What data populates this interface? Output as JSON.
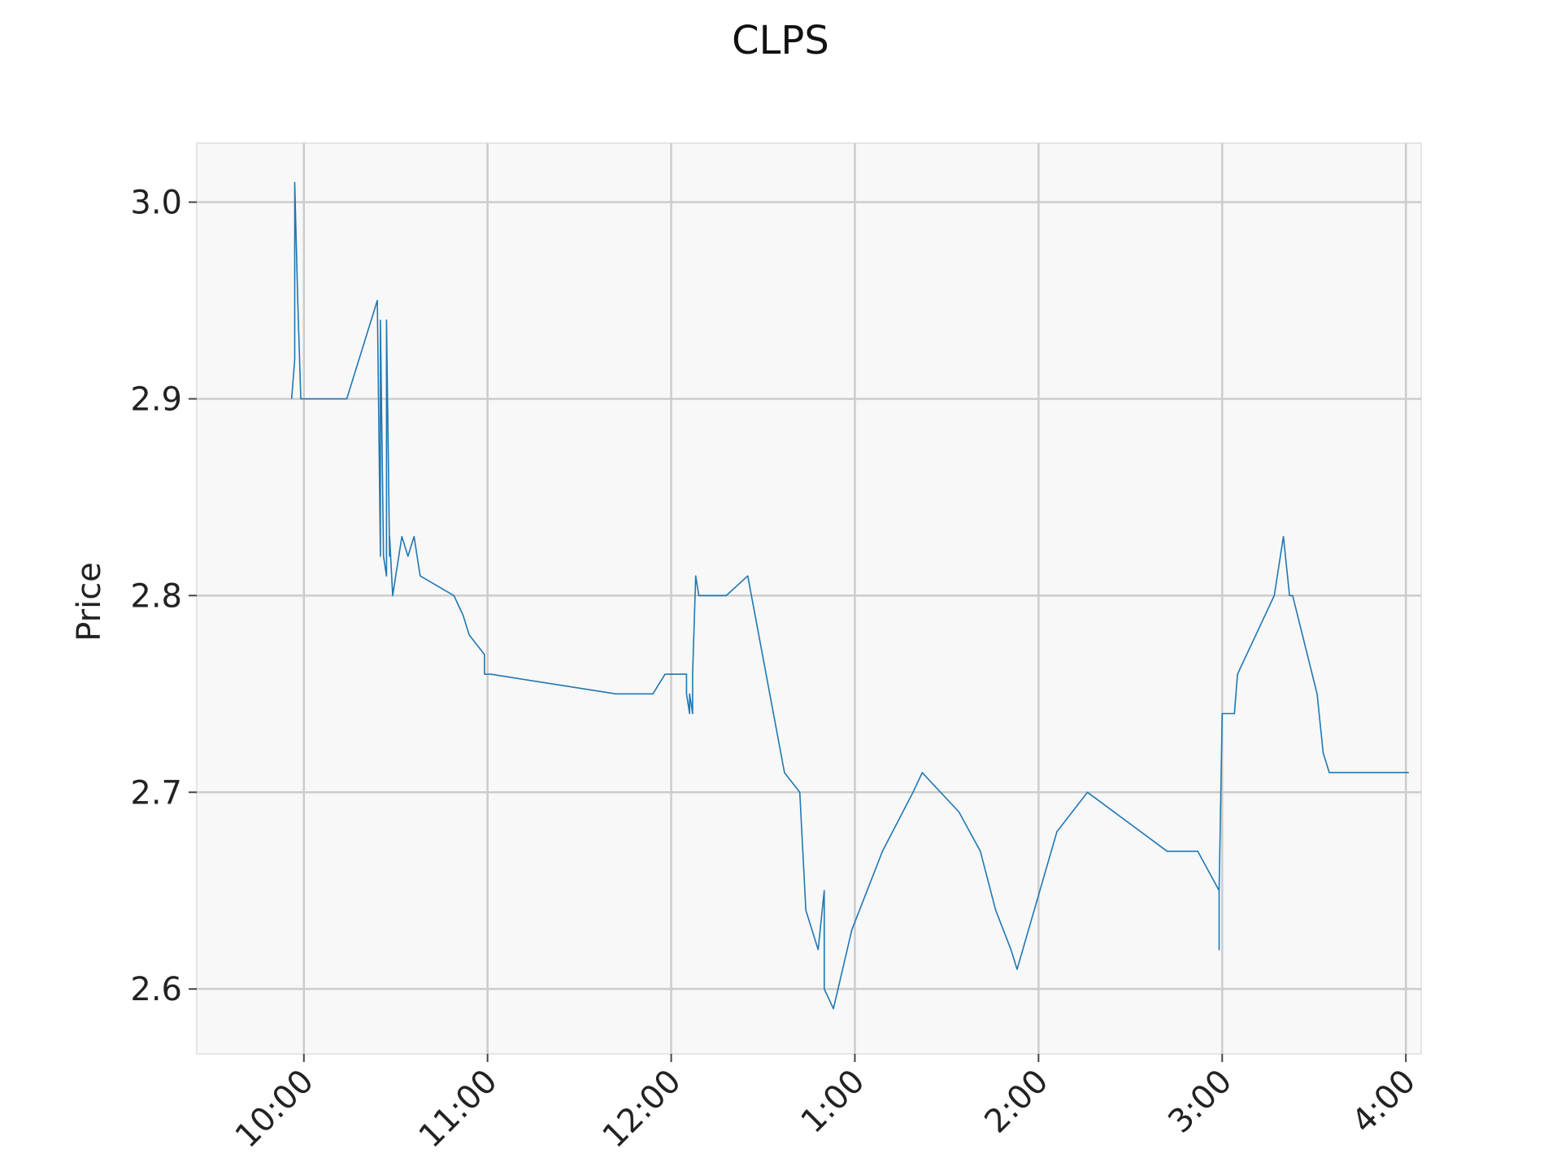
{
  "chart_data": {
    "type": "line",
    "title": "CLPS",
    "xlabel": "",
    "ylabel": "Price",
    "x_axis_type": "time",
    "xlim": [
      "9:25",
      "16:05"
    ],
    "ylim": [
      2.567,
      3.03
    ],
    "xticks": [
      {
        "time": "10:00",
        "label": "10:00"
      },
      {
        "time": "11:00",
        "label": "11:00"
      },
      {
        "time": "12:00",
        "label": "12:00"
      },
      {
        "time": "13:00",
        "label": "1:00"
      },
      {
        "time": "14:00",
        "label": "2:00"
      },
      {
        "time": "15:00",
        "label": "3:00"
      },
      {
        "time": "16:00",
        "label": "4:00"
      }
    ],
    "yticks": [
      {
        "value": 2.6,
        "label": "2.6"
      },
      {
        "value": 2.7,
        "label": "2.7"
      },
      {
        "value": 2.8,
        "label": "2.8"
      },
      {
        "value": 2.9,
        "label": "2.9"
      },
      {
        "value": 3.0,
        "label": "3.0"
      }
    ],
    "grid": true,
    "legend": false,
    "colors": {
      "line": "#1f77b4",
      "plot_bg": "#f8f8f8",
      "grid": "#cccccc",
      "frame": "#e6e6e6"
    },
    "series": [
      {
        "x": [
          "9:56",
          "9:57",
          "9:57",
          "9:58",
          "9:59",
          "10:04",
          "10:14",
          "10:24",
          "10:25",
          "10:25",
          "10:25",
          "10:26",
          "10:27",
          "10:27",
          "10:28",
          "10:28",
          "10:29",
          "10:30",
          "10:31",
          "10:32",
          "10:34",
          "10:36",
          "10:38",
          "10:49",
          "10:52",
          "10:54",
          "10:59",
          "10:59",
          "11:00",
          "11:01",
          "11:42",
          "11:43",
          "11:54",
          "11:58",
          "12:05",
          "12:05",
          "12:06",
          "12:06",
          "12:07",
          "12:07",
          "12:08",
          "12:09",
          "12:11",
          "12:11",
          "12:13",
          "12:18",
          "12:25",
          "12:37",
          "12:42",
          "12:44",
          "12:48",
          "12:50",
          "12:50",
          "12:50",
          "12:53",
          "12:59",
          "13:09",
          "13:19",
          "13:22",
          "13:34",
          "13:41",
          "13:46",
          "13:51",
          "13:53",
          "14:06",
          "14:16",
          "14:42",
          "14:52",
          "14:59",
          "14:59",
          "14:59",
          "15:00",
          "15:00",
          "15:01",
          "15:03",
          "15:04",
          "15:05",
          "15:17",
          "15:20",
          "15:22",
          "15:23",
          "15:31",
          "15:33",
          "15:35",
          "15:57",
          "16:01"
        ],
        "y": [
          2.9,
          2.92,
          3.01,
          2.95,
          2.9,
          2.9,
          2.9,
          2.95,
          2.82,
          2.91,
          2.94,
          2.82,
          2.81,
          2.94,
          2.82,
          2.83,
          2.8,
          2.81,
          2.82,
          2.83,
          2.82,
          2.83,
          2.81,
          2.8,
          2.79,
          2.78,
          2.77,
          2.76,
          2.76,
          2.76,
          2.75,
          2.75,
          2.75,
          2.76,
          2.76,
          2.75,
          2.74,
          2.75,
          2.74,
          2.76,
          2.81,
          2.8,
          2.8,
          2.8,
          2.8,
          2.8,
          2.81,
          2.71,
          2.7,
          2.64,
          2.62,
          2.65,
          2.61,
          2.6,
          2.59,
          2.63,
          2.67,
          2.7,
          2.71,
          2.69,
          2.67,
          2.64,
          2.62,
          2.61,
          2.68,
          2.7,
          2.67,
          2.67,
          2.65,
          2.62,
          2.65,
          2.74,
          2.74,
          2.74,
          2.74,
          2.74,
          2.76,
          2.8,
          2.83,
          2.8,
          2.8,
          2.75,
          2.72,
          2.71,
          2.71,
          2.71
        ]
      }
    ]
  }
}
